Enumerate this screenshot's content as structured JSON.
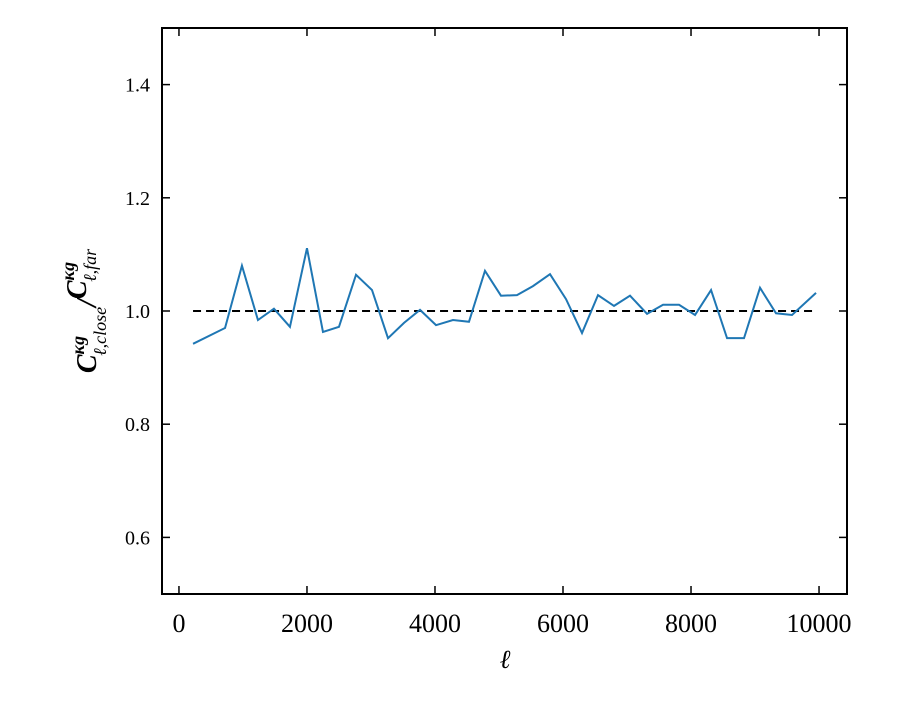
{
  "chart_data": {
    "type": "line",
    "xlabel": "ℓ",
    "ylabel": [
      "C",
      "κg",
      "ℓ,close",
      "/",
      "C",
      "κg",
      "ℓ,far"
    ],
    "x": [
      220,
      720,
      984,
      1234,
      1484,
      1734,
      2000,
      2250,
      2500,
      2766,
      3016,
      3266,
      3516,
      3766,
      4016,
      4281,
      4531,
      4781,
      5031,
      5281,
      5531,
      5797,
      6047,
      6297,
      6547,
      6797,
      7047,
      7313,
      7563,
      7813,
      8063,
      8313,
      8563,
      8828,
      9078,
      9328,
      9578,
      9953
    ],
    "series": [
      {
        "color": "#1f77b4",
        "values": [
          0.942,
          0.97,
          1.08,
          0.984,
          1.004,
          0.972,
          1.111,
          0.963,
          0.972,
          1.064,
          1.037,
          0.952,
          0.979,
          1.002,
          0.975,
          0.984,
          0.981,
          1.071,
          1.027,
          1.028,
          1.044,
          1.065,
          1.021,
          0.961,
          1.028,
          1.009,
          1.027,
          0.995,
          1.011,
          1.011,
          0.993,
          1.037,
          0.952,
          0.952,
          1.041,
          0.996,
          0.993,
          1.032
        ]
      }
    ],
    "reference_line": {
      "value": 1.0,
      "color": "#000000",
      "dashed": true
    },
    "xlim": [
      -265,
      10437
    ],
    "ylim": [
      0.5,
      1.5
    ],
    "xticks": [
      0,
      2000,
      4000,
      6000,
      8000,
      10000
    ],
    "yticks": [
      0.6,
      0.8,
      {
        "value": 1.0,
        "label": "1.0"
      },
      1.2,
      1.4
    ],
    "grid": false
  }
}
